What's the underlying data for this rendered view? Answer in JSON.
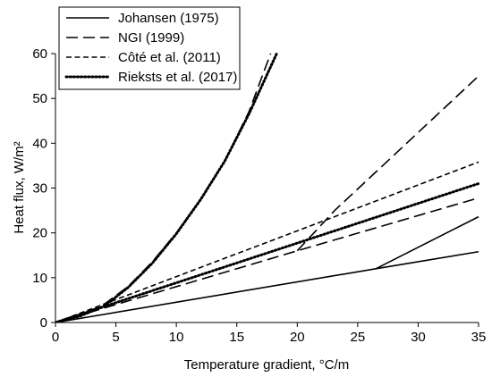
{
  "chart_data": {
    "type": "line",
    "xlabel": "Temperature gradient, °C/m",
    "ylabel": "Heat flux, W/m²",
    "xlim": [
      0,
      35
    ],
    "ylim": [
      0,
      60
    ],
    "xticks": [
      0,
      5,
      10,
      15,
      20,
      25,
      30,
      35
    ],
    "yticks": [
      0,
      10,
      20,
      30,
      40,
      50,
      60
    ],
    "grid": false,
    "legend_position": "top-left",
    "series": [
      {
        "name": "Johansen (1975)",
        "dash": "solid",
        "color": "#000000",
        "curves": [
          {
            "x": [
              0,
              26.5,
              35
            ],
            "y": [
              0,
              12.0,
              15.8
            ]
          },
          {
            "x": [
              26.5,
              35
            ],
            "y": [
              12.0,
              23.6
            ]
          }
        ]
      },
      {
        "name": "NGI (1999)",
        "dash": "long-dash",
        "color": "#000000",
        "curves": [
          {
            "x": [
              0,
              20,
              35
            ],
            "y": [
              0,
              16.0,
              27.8
            ]
          },
          {
            "x": [
              20,
              23.1,
              35
            ],
            "y": [
              16.0,
              25.0,
              55.0
            ]
          },
          {
            "x": [
              0,
              2,
              4,
              6,
              8,
              10,
              12,
              14,
              16,
              17.8
            ],
            "y": [
              0,
              1.6,
              4.0,
              8.0,
              13.5,
              20.0,
              27.5,
              36.0,
              47.0,
              60.0
            ]
          }
        ]
      },
      {
        "name": "Côté et al. (2011)",
        "dash": "short-dash",
        "color": "#000000",
        "curves": [
          {
            "x": [
              0,
              35
            ],
            "y": [
              0,
              35.8
            ]
          }
        ]
      },
      {
        "name": "Rieksts et al. (2017)",
        "dash": "dotted",
        "color": "#000000",
        "curves": [
          {
            "x": [
              0,
              35
            ],
            "y": [
              0,
              31.0
            ]
          },
          {
            "x": [
              0,
              2,
              4,
              6,
              8,
              10,
              12,
              14,
              16,
              18.3
            ],
            "y": [
              0,
              1.4,
              3.6,
              7.8,
              13.2,
              19.8,
              27.4,
              36.0,
              46.5,
              60.0
            ]
          }
        ]
      }
    ]
  }
}
